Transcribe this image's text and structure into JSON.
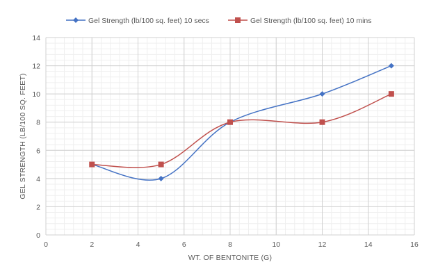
{
  "chart_data": {
    "type": "line",
    "title": "",
    "xlabel": "WT. OF BENTONITE (G)",
    "ylabel": "GEL STRENGTH (LB/100 SQ. FEET)",
    "xlim": [
      0,
      16
    ],
    "ylim": [
      0,
      14
    ],
    "x_ticks": [
      0,
      2,
      4,
      6,
      8,
      10,
      12,
      14,
      16
    ],
    "y_ticks": [
      0,
      2,
      4,
      6,
      8,
      10,
      12,
      14
    ],
    "grid": true,
    "legend_position": "top",
    "smooth": true,
    "x": [
      2,
      5,
      8,
      12,
      15
    ],
    "series": [
      {
        "name": "Gel Strength (lb/100 sq. feet)  10 secs",
        "values": [
          5,
          4,
          8,
          10,
          12
        ],
        "color": "#4472C4",
        "marker": "diamond"
      },
      {
        "name": "Gel Strength (lb/100 sq. feet)  10 mins",
        "values": [
          5,
          5,
          8,
          8,
          10
        ],
        "color": "#C0504D",
        "marker": "square"
      }
    ]
  }
}
